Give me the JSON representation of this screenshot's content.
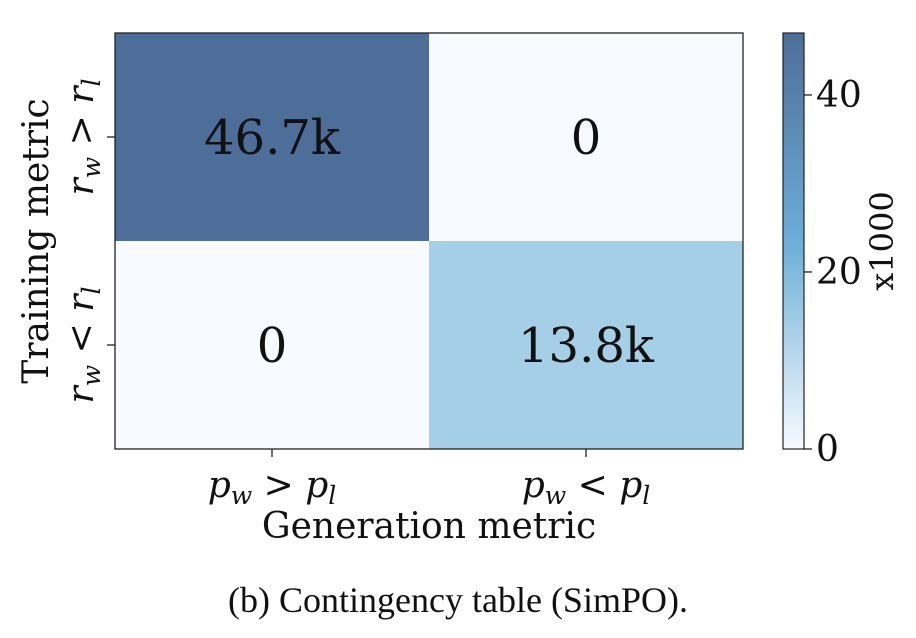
{
  "chart_data": {
    "type": "heatmap",
    "xlabel": "Generation metric",
    "ylabel": "Training metric",
    "x_categories": [
      {
        "base": "p",
        "sub1": "w",
        "op": ">",
        "base2": "p",
        "sub2": "l"
      },
      {
        "base": "p",
        "sub1": "w",
        "op": "<",
        "base2": "p",
        "sub2": "l"
      }
    ],
    "y_categories": [
      {
        "base": "r",
        "sub1": "w",
        "op": ">",
        "base2": "r",
        "sub2": "l"
      },
      {
        "base": "r",
        "sub1": "w",
        "op": "<",
        "base2": "r",
        "sub2": "l"
      }
    ],
    "values": [
      [
        46.7,
        0
      ],
      [
        0,
        13.8
      ]
    ],
    "cell_labels": [
      [
        "46.7k",
        "0"
      ],
      [
        "0",
        "13.8k"
      ]
    ],
    "colorbar": {
      "label": "x1000",
      "range": [
        0,
        47
      ],
      "ticks": [
        0,
        20,
        40
      ],
      "tick_labels": [
        "0",
        "20",
        "40"
      ]
    },
    "colors": {
      "low": "#f7fbff",
      "mid": "#6baed6",
      "high": "#4e6d99"
    }
  },
  "caption": "(b) Contingency table (SimPO)."
}
